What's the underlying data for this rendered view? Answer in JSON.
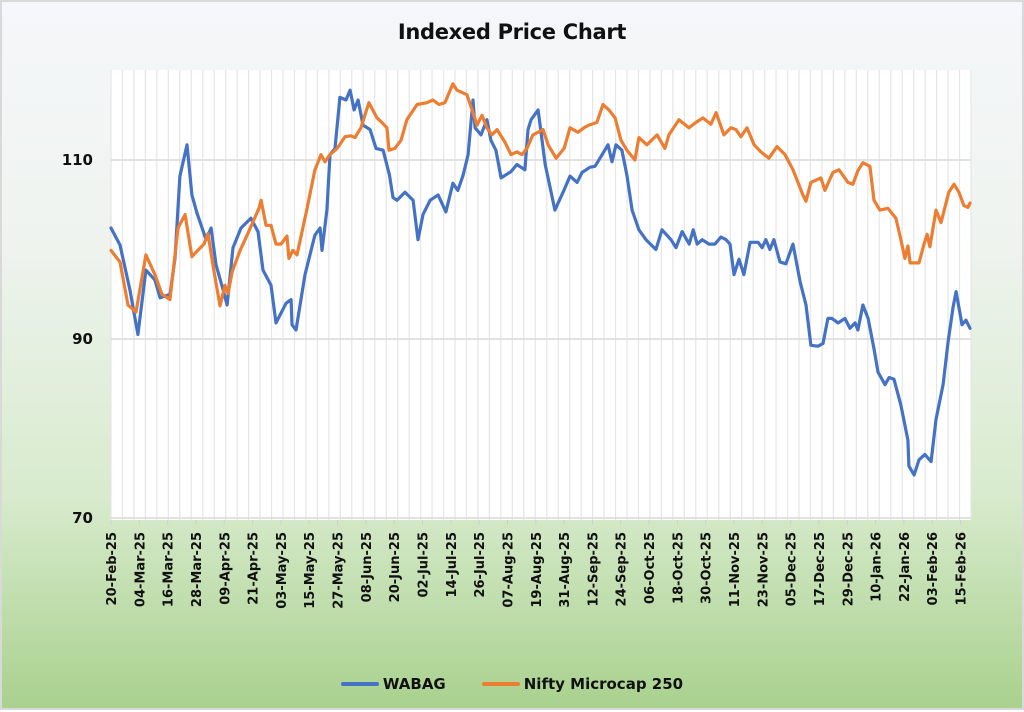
{
  "chart_data": {
    "type": "line",
    "title": "Indexed Price Chart",
    "xlabel": "",
    "ylabel": "",
    "ylim": [
      70,
      118
    ],
    "yticks": [
      70,
      90,
      110
    ],
    "xlim_days": [
      0,
      364
    ],
    "grid": {
      "horizontal": true,
      "vertical": true
    },
    "legend_position": "bottom-center",
    "x_tick_labels": [
      "20-Feb-25",
      "04-Mar-25",
      "16-Mar-25",
      "28-Mar-25",
      "09-Apr-25",
      "21-Apr-25",
      "03-May-25",
      "15-May-25",
      "27-May-25",
      "08-Jun-25",
      "20-Jun-25",
      "02-Jul-25",
      "14-Jul-25",
      "26-Jul-25",
      "07-Aug-25",
      "19-Aug-25",
      "31-Aug-25",
      "12-Sep-25",
      "24-Sep-25",
      "06-Oct-25",
      "18-Oct-25",
      "30-Oct-25",
      "11-Nov-25",
      "23-Nov-25",
      "05-Dec-25",
      "17-Dec-25",
      "29-Dec-25",
      "10-Jan-26",
      "22-Jan-26",
      "03-Feb-26",
      "15-Feb-26"
    ],
    "x_tick_days": [
      0,
      12,
      24,
      36,
      48,
      60,
      72,
      84,
      96,
      108,
      120,
      132,
      144,
      156,
      168,
      180,
      192,
      204,
      216,
      228,
      240,
      252,
      264,
      276,
      288,
      300,
      312,
      324,
      336,
      348,
      360
    ],
    "series": [
      {
        "name": "WABAG",
        "color": "#4472c4",
        "x_days": [
          0,
          3.8,
          8,
          11.4,
          14.8,
          18.6,
          20.8,
          25,
          27.1,
          29.2,
          32.2,
          34.3,
          36.4,
          40.3,
          42.4,
          44.5,
          47.5,
          49.2,
          51.7,
          55.1,
          59.3,
          62.3,
          64.4,
          67.8,
          69.9,
          74.2,
          76.3,
          76.7,
          78.4,
          82.2,
          86.4,
          88.6,
          89.4,
          91.5,
          92.8,
          94.9,
          97,
          99.6,
          101.3,
          103,
          104.7,
          106.8,
          109.8,
          112.3,
          115.3,
          118,
          119.5,
          121.2,
          124.6,
          128,
          130.1,
          132.2,
          135.2,
          138.6,
          141.9,
          144.9,
          147,
          149.2,
          151.3,
          153.4,
          154.3,
          156.8,
          159.3,
          161,
          163.1,
          165.3,
          169.5,
          172,
          175.4,
          176.7,
          178,
          181,
          184,
          188.1,
          191.9,
          194.5,
          197.5,
          199.6,
          203,
          205.1,
          207.2,
          210.6,
          212.3,
          214,
          216.5,
          218.6,
          220.8,
          223.7,
          226.7,
          230.9,
          233.5,
          237.3,
          239.4,
          242,
          245,
          246.7,
          248.4,
          250.5,
          253.4,
          255.9,
          258.5,
          260.6,
          262.3,
          264,
          266.1,
          268.2,
          270.8,
          272.9,
          274.2,
          275.9,
          277.5,
          279.2,
          280.9,
          283.5,
          286,
          289,
          292,
          294.5,
          296.6,
          299.6,
          301.7,
          303.8,
          305.5,
          308.1,
          311,
          313.1,
          315.3,
          316.5,
          318.6,
          320.8,
          323.3,
          325,
          328,
          329.7,
          331.8,
          334.7,
          337.7,
          338.1,
          340.3,
          342.4,
          344.9,
          347.5,
          349.6,
          352.6,
          354.7,
          356.8,
          358.1,
          360.6,
          362.3,
          364
        ],
        "values": [
          102.4,
          100.5,
          95.5,
          90.5,
          97.7,
          96.6,
          94.6,
          95,
          99,
          108.2,
          111.7,
          106.1,
          104.1,
          101.1,
          102.4,
          98.3,
          95.5,
          93.8,
          100.2,
          102.4,
          103.5,
          102,
          97.7,
          96,
          91.8,
          94,
          94.4,
          91.6,
          91,
          97.2,
          101.6,
          102.4,
          99.9,
          104.4,
          110.6,
          111.3,
          117,
          116.7,
          117.8,
          115.6,
          116.7,
          113.9,
          113.4,
          111.3,
          111.1,
          108.3,
          105.8,
          105.5,
          106.4,
          105.5,
          101.1,
          103.9,
          105.5,
          106.1,
          104.2,
          107.4,
          106.6,
          108.3,
          110.6,
          116.7,
          113.6,
          112.8,
          114.5,
          112.2,
          111.1,
          108,
          108.7,
          109.5,
          108.9,
          113.4,
          114.5,
          115.6,
          109.5,
          104.4,
          106.6,
          108.2,
          107.5,
          108.6,
          109.2,
          109.3,
          110.2,
          111.7,
          109.8,
          111.7,
          111.1,
          108.3,
          104.4,
          102.2,
          101.1,
          100,
          102.2,
          101.1,
          100.2,
          102,
          100.6,
          102.2,
          100.6,
          101.1,
          100.6,
          100.6,
          101.4,
          101.1,
          100.6,
          97.2,
          98.9,
          97.2,
          100.8,
          100.8,
          100.8,
          100.2,
          101.1,
          100,
          101.1,
          98.6,
          98.4,
          100.6,
          96.4,
          93.8,
          89.3,
          89.2,
          89.5,
          92.3,
          92.3,
          91.8,
          92.3,
          91.2,
          91.8,
          91,
          93.8,
          92.3,
          88.9,
          86.3,
          84.9,
          85.7,
          85.5,
          82.6,
          78.7,
          75.8,
          74.8,
          76.5,
          77.1,
          76.3,
          81,
          84.9,
          89.7,
          93.5,
          95.3,
          91.6,
          92.1,
          91.2
        ]
      },
      {
        "name": "Nifty Microcap 250",
        "color": "#ed7d31",
        "x_days": [
          0,
          3.8,
          7.2,
          10.6,
          14.8,
          18.6,
          21.6,
          25,
          28.4,
          31.4,
          34.3,
          36,
          39.4,
          41.1,
          43.2,
          46.2,
          48.3,
          49.6,
          51.3,
          54.7,
          58,
          62.7,
          63.6,
          65.7,
          67.8,
          69.9,
          72,
          74.6,
          75.4,
          77.1,
          78.8,
          83.1,
          86.4,
          89,
          90.7,
          92.8,
          95.8,
          99.2,
          101.7,
          103.4,
          105.9,
          109.3,
          112.7,
          114.8,
          116.9,
          117.8,
          120.3,
          122.9,
          125.4,
          129.7,
          133.9,
          136.4,
          139,
          141.5,
          144.9,
          146.6,
          150.8,
          153,
          155.1,
          157.2,
          159.3,
          161.4,
          163.6,
          166.9,
          169.5,
          172,
          174.2,
          176.3,
          178.8,
          183.1,
          185.2,
          188.6,
          192,
          194.5,
          197.9,
          200.4,
          202.5,
          205.9,
          208.5,
          211,
          213.6,
          216.1,
          218.6,
          222,
          223.7,
          227.1,
          231.4,
          234.7,
          236.4,
          240.7,
          244.9,
          247.9,
          250.8,
          254.2,
          256.4,
          259.7,
          262.7,
          264.8,
          266.9,
          269.5,
          272.5,
          275.4,
          278.8,
          282.2,
          285.6,
          289,
          293.2,
          294.5,
          296.6,
          300.8,
          302.5,
          305.9,
          308.5,
          312.3,
          314.4,
          316.5,
          318.6,
          321.6,
          323.3,
          325.8,
          329.2,
          332.6,
          334.7,
          336.4,
          337.7,
          338.6,
          342.4,
          344.5,
          345.8,
          347,
          349.6,
          351.7,
          355,
          357.2,
          359.3,
          361.4,
          363.1,
          364
        ],
        "values": [
          99.9,
          98.6,
          93.8,
          93,
          99.4,
          97.2,
          95,
          94.4,
          102.4,
          103.9,
          99.2,
          99.7,
          100.6,
          101.8,
          98.3,
          93.7,
          96,
          95.1,
          97.5,
          99.9,
          101.8,
          104.6,
          105.5,
          102.7,
          102.7,
          100.6,
          100.6,
          101.5,
          99,
          99.9,
          99.4,
          104.6,
          108.9,
          110.6,
          109.8,
          110.6,
          111.3,
          112.6,
          112.7,
          112.5,
          113.6,
          116.4,
          114.7,
          114.2,
          113.6,
          111.1,
          111.3,
          112.2,
          114.5,
          116.2,
          116.4,
          116.7,
          116.2,
          116.4,
          118.5,
          117.8,
          117.3,
          115.6,
          113.9,
          115,
          113.6,
          112.8,
          113.4,
          112,
          110.6,
          110.9,
          110.6,
          111.3,
          112.8,
          113.4,
          111.7,
          110.2,
          111.3,
          113.6,
          113.1,
          113.6,
          113.9,
          114.2,
          116.2,
          115.6,
          114.7,
          112.2,
          111.1,
          110,
          112.5,
          111.7,
          112.8,
          111.3,
          112.8,
          114.5,
          113.6,
          114.2,
          114.7,
          114,
          115.3,
          112.8,
          113.6,
          113.4,
          112.6,
          113.6,
          111.7,
          110.9,
          110.2,
          111.5,
          110.6,
          108.9,
          106.1,
          105.4,
          107.5,
          108,
          106.6,
          108.6,
          108.9,
          107.5,
          107.3,
          108.8,
          109.7,
          109.3,
          105.5,
          104.4,
          104.6,
          103.5,
          101.1,
          99,
          100.4,
          98.5,
          98.5,
          100.6,
          101.7,
          100.3,
          104.4,
          103,
          106.4,
          107.3,
          106.4,
          104.9,
          104.7,
          105.2,
          103.9
        ]
      }
    ]
  }
}
